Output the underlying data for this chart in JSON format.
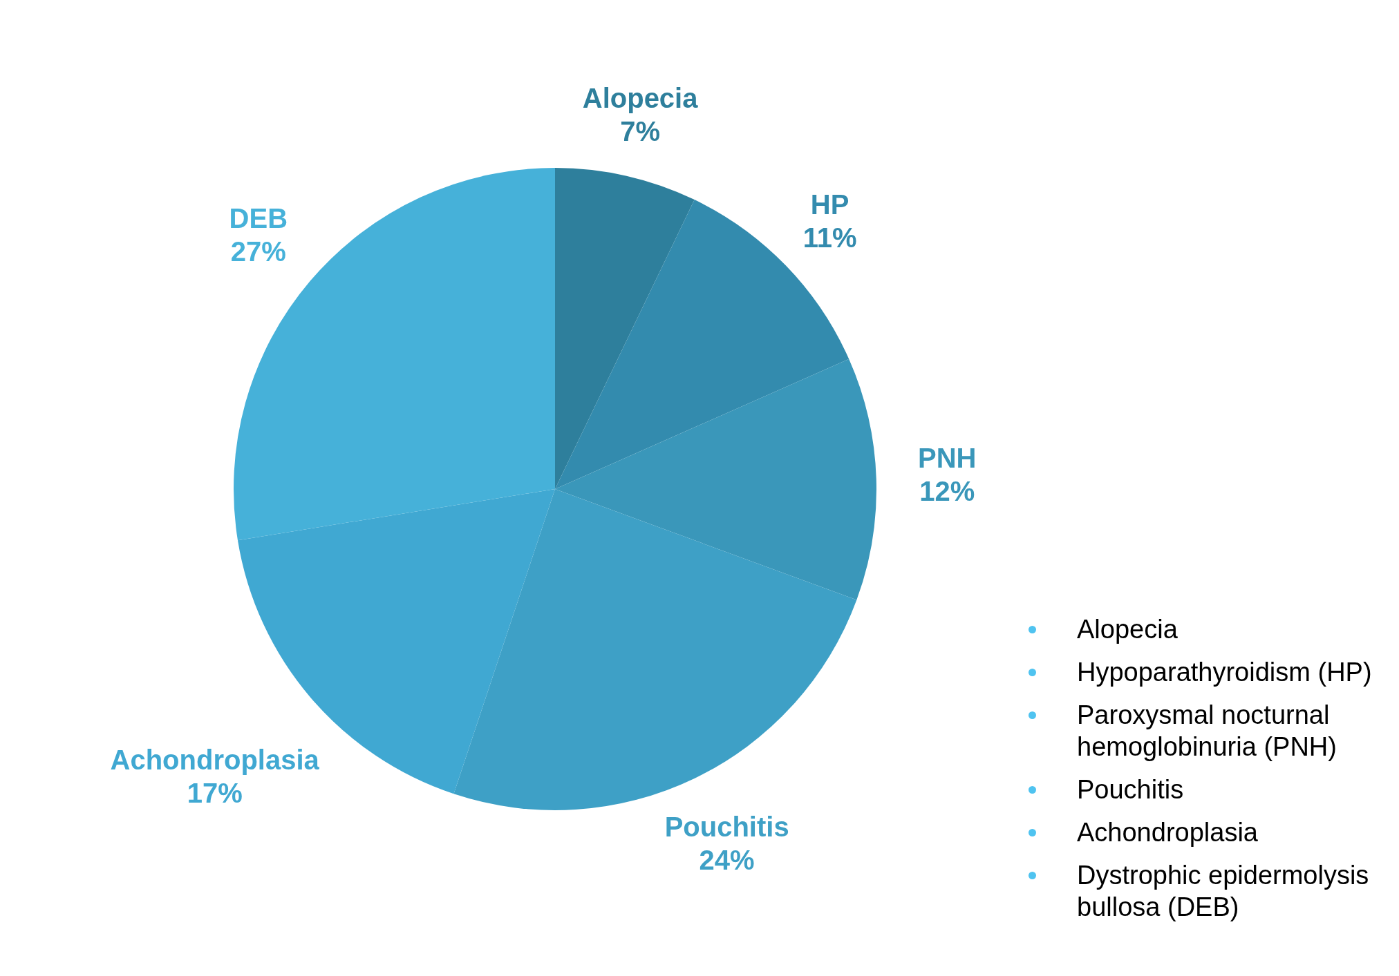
{
  "chart_data": {
    "type": "pie",
    "categories": [
      "Alopecia",
      "HP",
      "PNH",
      "Pouchitis",
      "Achondroplasia",
      "DEB"
    ],
    "values": [
      7,
      11,
      12,
      24,
      17,
      27
    ],
    "value_labels": [
      "7%",
      "11%",
      "12%",
      "24%",
      "17%",
      "27%"
    ],
    "colors": [
      "#2e7f9c",
      "#338bae",
      "#3a97ba",
      "#3ea0c6",
      "#40a8d2",
      "#46b1d9"
    ],
    "legend": false,
    "annotations": [
      "Alopecia",
      "Hypoparathyroidism (HP)",
      "Paroxysmal nocturnal hemoglobinuria (PNH)",
      "Pouchitis",
      "Achondroplasia",
      "Dystrophic epidermolysis bullosa (DEB)"
    ]
  }
}
